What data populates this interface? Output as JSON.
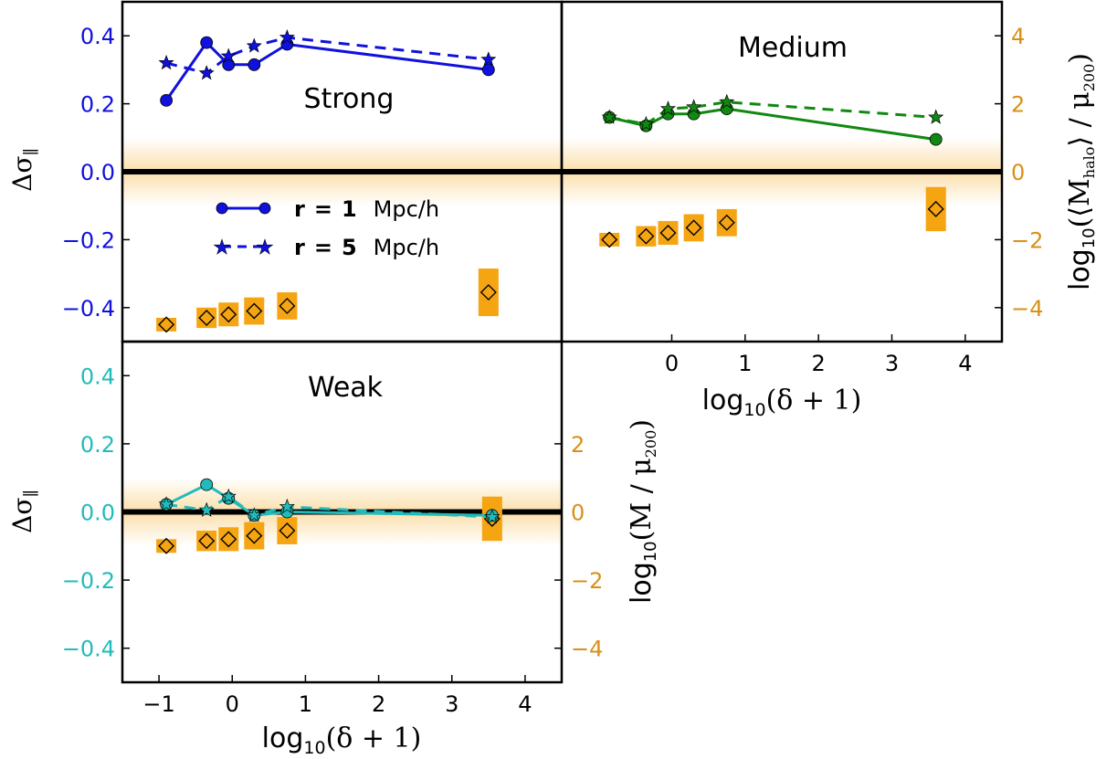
{
  "colors": {
    "strong": "#1111dd",
    "medium": "#118811",
    "weak": "#22bbbb",
    "mass": "#f5a412",
    "mass_text": "#d99015",
    "axis": "#000000"
  },
  "labels": {
    "delta_sigma": "Δσ",
    "delta_sigma_sub": "∥",
    "x_axis_main": "log",
    "x_axis_sub": "10",
    "x_axis_tail": "(δ + 1)",
    "mass_halo_main": "log",
    "mass_halo_sub": "10",
    "mass_halo_tail": "(⟨M",
    "mass_halo_tail_sub": "halo",
    "mass_halo_tail2": "⟩ / μ",
    "mass_halo_tail2_sub": "200",
    "mass_halo_close": ")",
    "mass_weak_main": "log",
    "mass_weak_sub": "10",
    "mass_weak_tail": "(M / μ",
    "mass_weak_tail_sub": "200",
    "mass_weak_close": ")"
  },
  "legend": {
    "entries": [
      {
        "r_label": "r",
        "eq": "=",
        "value": "1",
        "unit": "Mpc/h",
        "style": "solid",
        "marker": "circle"
      },
      {
        "r_label": "r",
        "eq": "=",
        "value": "5",
        "unit": "Mpc/h",
        "style": "dashed",
        "marker": "star"
      }
    ]
  },
  "chart_data": [
    {
      "type": "line",
      "panel": "strong",
      "title": "Strong",
      "xlabel": "log10(δ+1)",
      "ylabel": "Δσ∥",
      "xlim": [
        -1.5,
        4.5
      ],
      "ylim": [
        -0.5,
        0.5
      ],
      "yticks": [
        -0.4,
        -0.2,
        0.0,
        0.2,
        0.4
      ],
      "ytick_labels": [
        "−0.4",
        "−0.2",
        "0.0",
        "0.2",
        "0.4"
      ],
      "series": [
        {
          "name": "r = 1 Mpc/h",
          "x": [
            -0.9,
            -0.35,
            -0.05,
            0.3,
            0.75,
            3.5
          ],
          "values": [
            0.21,
            0.38,
            0.315,
            0.315,
            0.375,
            0.3
          ]
        },
        {
          "name": "r = 5 Mpc/h",
          "x": [
            -0.9,
            -0.35,
            -0.05,
            0.3,
            0.75,
            3.5
          ],
          "values": [
            0.32,
            0.29,
            0.34,
            0.37,
            0.395,
            0.33
          ]
        }
      ],
      "mass": {
        "x": [
          -0.9,
          -0.35,
          -0.05,
          0.3,
          0.75,
          3.5
        ],
        "values": [
          -0.45,
          -0.43,
          -0.42,
          -0.41,
          -0.395,
          -0.355
        ],
        "err": [
          0.02,
          0.03,
          0.035,
          0.04,
          0.04,
          0.07
        ]
      },
      "right_axis": {
        "ylim": [
          -5,
          5
        ],
        "ticks": [
          -4,
          -2,
          0,
          2,
          4
        ],
        "labels": [
          "−4",
          "−2",
          "0",
          "2",
          "4"
        ]
      }
    },
    {
      "type": "line",
      "panel": "medium",
      "title": "Medium",
      "xlabel": "log10(δ+1)",
      "ylabel": "log10(⟨Mhalo⟩/μ200)",
      "xlim": [
        -1.5,
        4.5
      ],
      "ylim": [
        -0.5,
        0.5
      ],
      "xticks": [
        0,
        1,
        2,
        3,
        4
      ],
      "xtick_labels": [
        "0",
        "1",
        "2",
        "3",
        "4"
      ],
      "right_axis": {
        "ylim": [
          -5,
          5
        ],
        "ticks": [
          -4,
          -2,
          0,
          2,
          4
        ],
        "labels": [
          "−4",
          "−2",
          "0",
          "2",
          "4"
        ]
      },
      "series": [
        {
          "name": "r = 1 Mpc/h",
          "x": [
            -0.85,
            -0.35,
            -0.05,
            0.3,
            0.75,
            3.6
          ],
          "values": [
            0.16,
            0.135,
            0.17,
            0.17,
            0.185,
            0.095
          ]
        },
        {
          "name": "r = 5 Mpc/h",
          "x": [
            -0.85,
            -0.35,
            -0.05,
            0.3,
            0.75,
            3.6
          ],
          "values": [
            0.16,
            0.14,
            0.185,
            0.19,
            0.205,
            0.16
          ]
        }
      ],
      "mass": {
        "x": [
          -0.85,
          -0.35,
          -0.05,
          0.3,
          0.75,
          3.6
        ],
        "values": [
          -0.2,
          -0.19,
          -0.18,
          -0.165,
          -0.15,
          -0.11
        ],
        "err": [
          0.02,
          0.03,
          0.035,
          0.04,
          0.04,
          0.065
        ]
      }
    },
    {
      "type": "line",
      "panel": "weak",
      "title": "Weak",
      "xlabel": "log10(δ+1)",
      "ylabel": "Δσ∥",
      "xlim": [
        -1.5,
        4.5
      ],
      "ylim": [
        -0.5,
        0.5
      ],
      "xticks": [
        -1,
        0,
        1,
        2,
        3,
        4
      ],
      "xtick_labels": [
        "−1",
        "0",
        "1",
        "2",
        "3",
        "4"
      ],
      "yticks": [
        -0.4,
        -0.2,
        0.0,
        0.2,
        0.4
      ],
      "ytick_labels": [
        "−0.4",
        "−0.2",
        "0.0",
        "0.2",
        "0.4"
      ],
      "right_axis": {
        "ylim": [
          -5,
          5
        ],
        "ticks": [
          -4,
          -2,
          0,
          2
        ],
        "labels": [
          "−4",
          "−2",
          "0",
          "2"
        ]
      },
      "series": [
        {
          "name": "r = 1 Mpc/h",
          "x": [
            -0.9,
            -0.35,
            -0.05,
            0.3,
            0.75,
            3.55
          ],
          "values": [
            0.022,
            0.08,
            0.04,
            -0.01,
            0.0,
            -0.01
          ]
        },
        {
          "name": "r = 5 Mpc/h",
          "x": [
            -0.9,
            -0.35,
            -0.05,
            0.3,
            0.75,
            3.55
          ],
          "values": [
            0.022,
            0.005,
            0.045,
            -0.01,
            0.015,
            -0.015
          ]
        }
      ],
      "mass": {
        "x": [
          -0.9,
          -0.35,
          -0.05,
          0.3,
          0.75,
          3.55
        ],
        "values": [
          -0.1,
          -0.085,
          -0.08,
          -0.07,
          -0.055,
          -0.02
        ],
        "err": [
          0.02,
          0.03,
          0.035,
          0.04,
          0.04,
          0.065
        ]
      }
    }
  ]
}
